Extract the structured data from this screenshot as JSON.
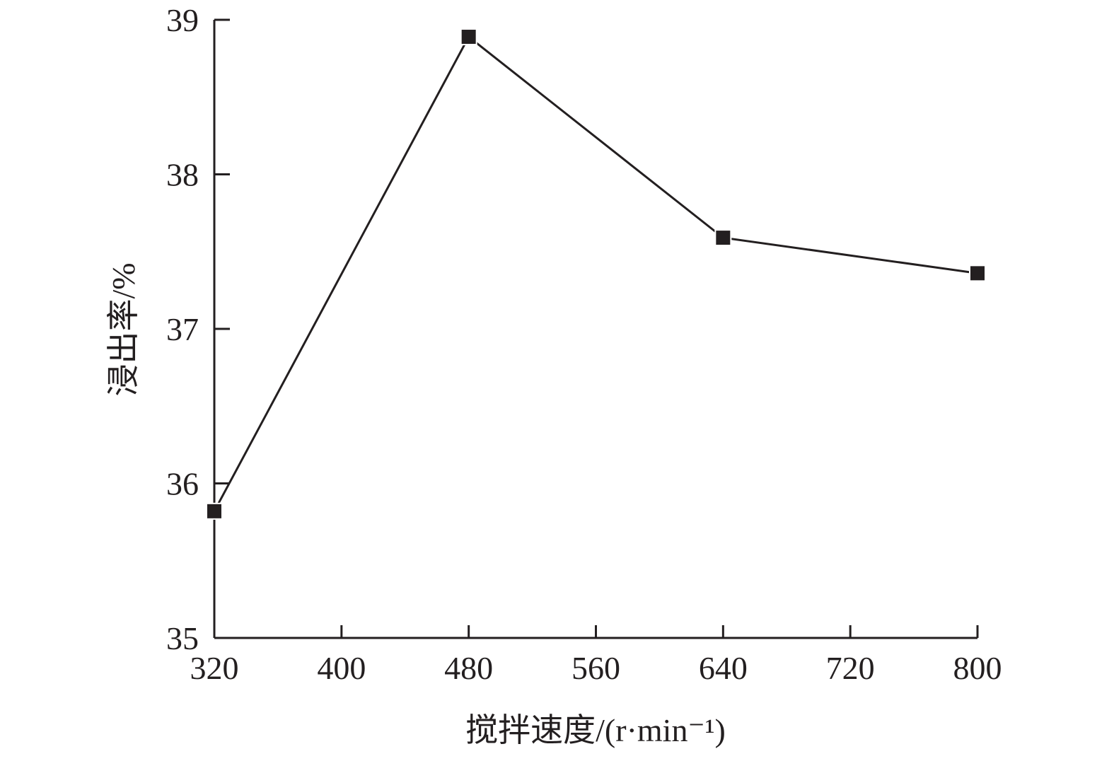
{
  "chart_data": {
    "type": "line",
    "xlabel": "搅拌速度/(r·min⁻¹)",
    "ylabel": "浸出率/%",
    "xlim": [
      320,
      800
    ],
    "ylim": [
      35,
      39
    ],
    "xticks": [
      "320",
      "400",
      "480",
      "560",
      "640",
      "720",
      "800"
    ],
    "yticks": [
      "35",
      "36",
      "37",
      "38",
      "39"
    ],
    "grid": false,
    "series": [
      {
        "marker": "square",
        "color": "#231f20",
        "x": [
          320,
          480,
          640,
          800
        ],
        "y": [
          35.82,
          38.89,
          37.59,
          37.36
        ]
      }
    ]
  }
}
